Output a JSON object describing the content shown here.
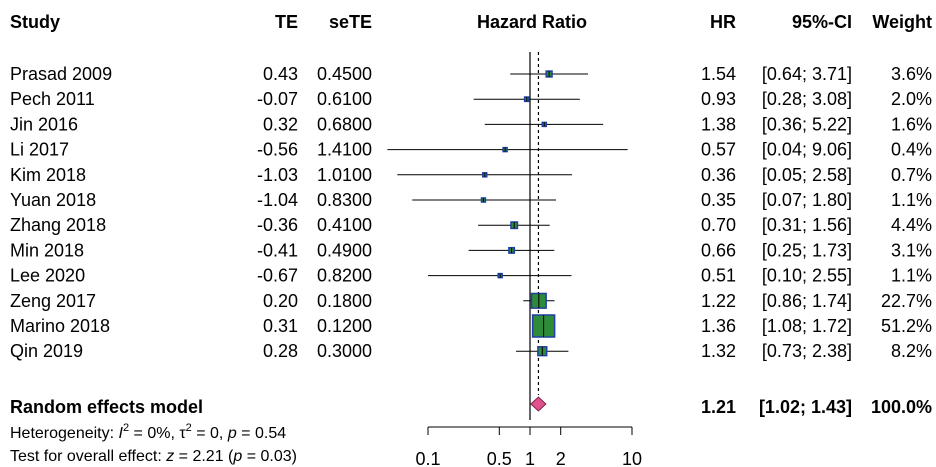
{
  "chart_data": {
    "type": "forest",
    "headers": {
      "study": "Study",
      "te": "TE",
      "sete": "seTE",
      "plot": "Hazard Ratio",
      "hr": "HR",
      "ci": "95%-CI",
      "weight": "Weight"
    },
    "studies": [
      {
        "study": "Prasad 2009",
        "te": "0.43",
        "sete": "0.4500",
        "hr": 1.54,
        "lower": 0.64,
        "upper": 3.71,
        "hr_label": "1.54",
        "ci_label": "[0.64; 3.71]",
        "weight": 3.6,
        "weight_label": "3.6%"
      },
      {
        "study": "Pech 2011",
        "te": "-0.07",
        "sete": "0.6100",
        "hr": 0.93,
        "lower": 0.28,
        "upper": 3.08,
        "hr_label": "0.93",
        "ci_label": "[0.28; 3.08]",
        "weight": 2.0,
        "weight_label": "2.0%"
      },
      {
        "study": "Jin 2016",
        "te": "0.32",
        "sete": "0.6800",
        "hr": 1.38,
        "lower": 0.36,
        "upper": 5.22,
        "hr_label": "1.38",
        "ci_label": "[0.36; 5.22]",
        "weight": 1.6,
        "weight_label": "1.6%"
      },
      {
        "study": "Li 2017",
        "te": "-0.56",
        "sete": "1.4100",
        "hr": 0.57,
        "lower": 0.04,
        "upper": 9.06,
        "hr_label": "0.57",
        "ci_label": "[0.04; 9.06]",
        "weight": 0.4,
        "weight_label": "0.4%"
      },
      {
        "study": "Kim 2018",
        "te": "-1.03",
        "sete": "1.0100",
        "hr": 0.36,
        "lower": 0.05,
        "upper": 2.58,
        "hr_label": "0.36",
        "ci_label": "[0.05; 2.58]",
        "weight": 0.7,
        "weight_label": "0.7%"
      },
      {
        "study": "Yuan 2018",
        "te": "-1.04",
        "sete": "0.8300",
        "hr": 0.35,
        "lower": 0.07,
        "upper": 1.8,
        "hr_label": "0.35",
        "ci_label": "[0.07; 1.80]",
        "weight": 1.1,
        "weight_label": "1.1%"
      },
      {
        "study": "Zhang 2018",
        "te": "-0.36",
        "sete": "0.4100",
        "hr": 0.7,
        "lower": 0.31,
        "upper": 1.56,
        "hr_label": "0.70",
        "ci_label": "[0.31; 1.56]",
        "weight": 4.4,
        "weight_label": "4.4%"
      },
      {
        "study": "Min 2018",
        "te": "-0.41",
        "sete": "0.4900",
        "hr": 0.66,
        "lower": 0.25,
        "upper": 1.73,
        "hr_label": "0.66",
        "ci_label": "[0.25; 1.73]",
        "weight": 3.1,
        "weight_label": "3.1%"
      },
      {
        "study": "Lee 2020",
        "te": "-0.67",
        "sete": "0.8200",
        "hr": 0.51,
        "lower": 0.1,
        "upper": 2.55,
        "hr_label": "0.51",
        "ci_label": "[0.10; 2.55]",
        "weight": 1.1,
        "weight_label": "1.1%"
      },
      {
        "study": "Zeng 2017",
        "te": "0.20",
        "sete": "0.1800",
        "hr": 1.22,
        "lower": 0.86,
        "upper": 1.74,
        "hr_label": "1.22",
        "ci_label": "[0.86; 1.74]",
        "weight": 22.7,
        "weight_label": "22.7%"
      },
      {
        "study": "Marino 2018",
        "te": "0.31",
        "sete": "0.1200",
        "hr": 1.36,
        "lower": 1.08,
        "upper": 1.72,
        "hr_label": "1.36",
        "ci_label": "[1.08; 1.72]",
        "weight": 51.2,
        "weight_label": "51.2%"
      },
      {
        "study": "Qin 2019",
        "te": "0.28",
        "sete": "0.3000",
        "hr": 1.32,
        "lower": 0.73,
        "upper": 2.38,
        "hr_label": "1.32",
        "ci_label": "[0.73; 2.38]",
        "weight": 8.2,
        "weight_label": "8.2%"
      }
    ],
    "pooled": {
      "label": "Random effects model",
      "hr": 1.21,
      "lower": 1.02,
      "upper": 1.43,
      "hr_label": "1.21",
      "ci_label": "[1.02; 1.43]",
      "weight_label": "100.0%"
    },
    "heterogeneity": {
      "prefix": "Heterogeneity: ",
      "i2_sym": "I",
      "sup2": "2",
      "i2_val": " = 0%, ",
      "tau_sym": "τ",
      "tau_val": " = 0, ",
      "p_sym": "p",
      "p_val": " = 0.54"
    },
    "overall": {
      "prefix": "Test for overall effect: ",
      "z_sym": "z",
      "z_val": " = 2.21 (",
      "p_sym": "p",
      "p_val": " = 0.03)"
    },
    "x_axis": {
      "scale": "log",
      "xlim": [
        0.1,
        10
      ],
      "ticks": [
        0.1,
        0.5,
        1,
        2,
        10
      ],
      "tick_labels": [
        "0.1",
        "0.5",
        "1",
        "2",
        "10"
      ],
      "reference_line": 1
    },
    "colors": {
      "square_fill": "#2e8b3a",
      "square_border": "#1f3fa0",
      "ci_line": "#000000",
      "diamond_fill": "#e0528c",
      "diamond_border": "#7a1f4a",
      "pooled_line": "#000000"
    }
  }
}
